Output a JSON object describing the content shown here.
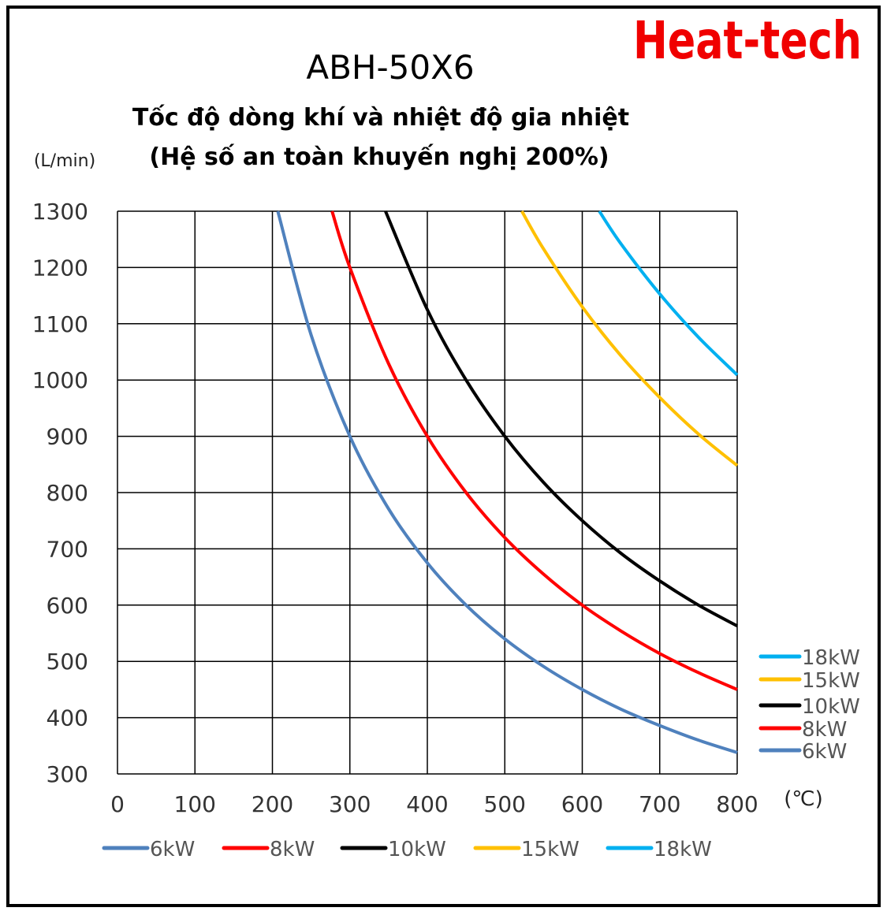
{
  "logo": {
    "text": "Heat-tech",
    "color": "#f00000"
  },
  "chart_data": {
    "type": "line",
    "title": "ABH-50X6",
    "subtitle": "Tốc độ dòng khí và nhiệt độ gia nhiệt",
    "subtitle2": "(Hệ số an toàn khuyến nghị 200%)",
    "xlabel": "(℃)",
    "ylabel": "(L/min)",
    "xlim": [
      0,
      800
    ],
    "ylim": [
      300,
      1300
    ],
    "xticks": [
      "0",
      "100",
      "200",
      "300",
      "400",
      "500",
      "600",
      "700",
      "800"
    ],
    "yticks": [
      "1300",
      "1200",
      "1100",
      "1000",
      "900",
      "800",
      "700",
      "600",
      "500",
      "400",
      "300"
    ],
    "grid": true,
    "legend_right_placement": "bottom-right",
    "legend_bottom_placement": "bottom",
    "series": [
      {
        "name": "6kW",
        "color": "#4f81bd",
        "x": [
          207,
          250,
          300,
          350,
          400,
          450,
          500,
          550,
          600,
          650,
          700,
          750,
          800
        ],
        "y": [
          1300,
          1080,
          900,
          771,
          675,
          600,
          540,
          491,
          450,
          415,
          386,
          360,
          338
        ]
      },
      {
        "name": "8kW",
        "color": "#ff0000",
        "x": [
          277,
          300,
          350,
          400,
          450,
          500,
          550,
          600,
          650,
          700,
          750,
          800
        ],
        "y": [
          1300,
          1200,
          1029,
          900,
          800,
          720,
          655,
          600,
          554,
          514,
          480,
          450
        ]
      },
      {
        "name": "10kW",
        "color": "#000000",
        "x": [
          346,
          400,
          450,
          500,
          550,
          600,
          650,
          700,
          750,
          800
        ],
        "y": [
          1300,
          1125,
          1000,
          900,
          818,
          750,
          692,
          643,
          600,
          563
        ]
      },
      {
        "name": "15kW",
        "color": "#ffc000",
        "x": [
          522,
          550,
          600,
          650,
          700,
          750,
          800
        ],
        "y": [
          1300,
          1233,
          1130,
          1043,
          969,
          904,
          848
        ]
      },
      {
        "name": "18kW",
        "color": "#00b0f0",
        "x": [
          622,
          650,
          700,
          750,
          800
        ],
        "y": [
          1300,
          1242,
          1153,
          1076,
          1009
        ]
      }
    ]
  }
}
